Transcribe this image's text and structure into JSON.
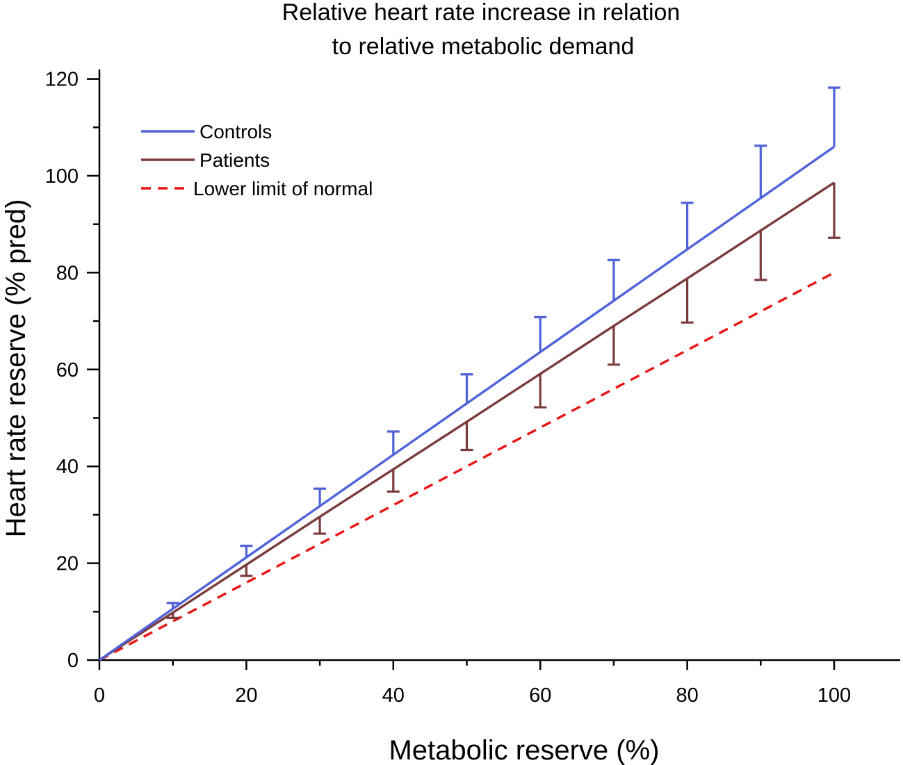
{
  "chart_data": {
    "type": "line",
    "title_lines": [
      "Relative heart rate increase in relation",
      "to relative metabolic demand"
    ],
    "xlabel": "Metabolic reserve (%)",
    "ylabel": "Heart rate reserve (% pred)",
    "xlim": [
      0,
      109
    ],
    "ylim": [
      0,
      120
    ],
    "xticks": [
      0,
      20,
      40,
      60,
      80,
      100
    ],
    "yticks": [
      0,
      20,
      40,
      60,
      80,
      100,
      120
    ],
    "x_minor_step": 10,
    "y_minor_step": 10,
    "grid": false,
    "legend_position": "top-left",
    "x": [
      0,
      10,
      20,
      30,
      40,
      50,
      60,
      70,
      80,
      90,
      100
    ],
    "series": [
      {
        "name": "Controls",
        "color": "#4f62d8",
        "style": "solid",
        "values": [
          0,
          10.6,
          21.2,
          31.8,
          42.4,
          53,
          63.6,
          74.2,
          84.8,
          95.4,
          106
        ],
        "error_direction": "up",
        "errors": [
          null,
          1.2,
          2.4,
          3.6,
          4.8,
          6,
          7.2,
          8.4,
          9.6,
          10.8,
          12.2
        ]
      },
      {
        "name": "Patients",
        "color": "#7b3b3b",
        "style": "solid",
        "values": [
          0,
          9.8,
          19.7,
          29.6,
          39.4,
          49.2,
          59.1,
          69,
          78.8,
          88.7,
          98.6
        ],
        "error_direction": "down",
        "errors": [
          null,
          1.1,
          2.3,
          3.5,
          4.6,
          5.8,
          6.9,
          8,
          9.1,
          10.2,
          11.4
        ]
      },
      {
        "name": "Lower limit of normal",
        "color": "#e81414",
        "style": "dashed",
        "values": [
          0,
          8,
          16,
          24,
          32,
          40,
          48,
          56,
          64,
          72,
          80
        ]
      }
    ]
  }
}
